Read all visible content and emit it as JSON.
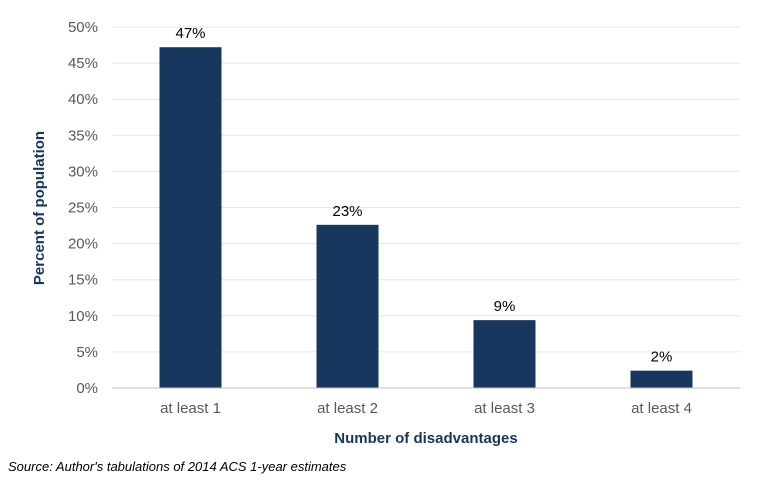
{
  "chart_data": {
    "type": "bar",
    "categories": [
      "at least 1",
      "at least 2",
      "at least 3",
      "at least 4"
    ],
    "values": [
      47.2,
      22.6,
      9.4,
      2.4
    ],
    "data_labels": [
      "47%",
      "23%",
      "9%",
      "2%"
    ],
    "xlabel": "Number of disadvantages",
    "ylabel": "Percent of population",
    "ylim": [
      0,
      50
    ],
    "yticks": [
      0,
      5,
      10,
      15,
      20,
      25,
      30,
      35,
      40,
      45,
      50
    ],
    "ytick_labels": [
      "0%",
      "5%",
      "10%",
      "15%",
      "20%",
      "25%",
      "30%",
      "35%",
      "40%",
      "45%",
      "50%"
    ],
    "grid": true,
    "legend": "none",
    "colors": {
      "bar": "#17375e",
      "axis_title": "#17375e",
      "grid": "#e6e6e6",
      "tick_text": "#595959"
    }
  },
  "source_note": "Source: Author's tabulations of 2014 ACS 1-year estimates"
}
